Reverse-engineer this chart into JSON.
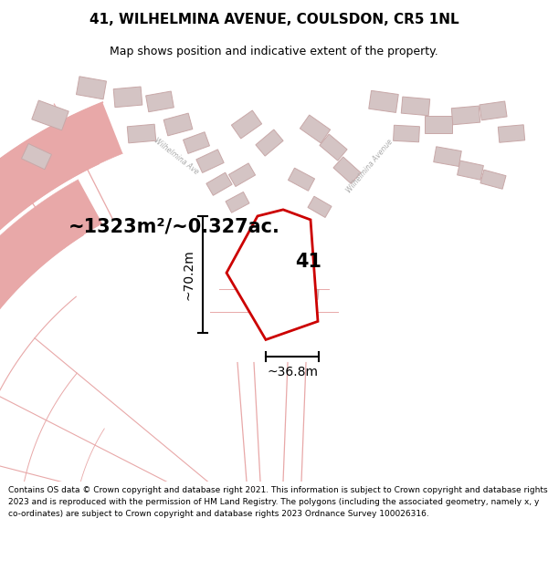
{
  "title": "41, WILHELMINA AVENUE, COULSDON, CR5 1NL",
  "subtitle": "Map shows position and indicative extent of the property.",
  "footer": "Contains OS data © Crown copyright and database right 2021. This information is subject to Crown copyright and database rights 2023 and is reproduced with the permission of HM Land Registry. The polygons (including the associated geometry, namely x, y co-ordinates) are subject to Crown copyright and database rights 2023 Ordnance Survey 100026316.",
  "area_label": "~1323m²/~0.327ac.",
  "number_label": "41",
  "dim_height": "~70.2m",
  "dim_width": "~36.8m",
  "map_bg": "#ffffff",
  "road_color": "#e8a8a8",
  "parcel_color": "#e8a8a8",
  "building_color": "#d0c0c0",
  "highlight_color": "#cc0000",
  "title_fontsize": 11,
  "subtitle_fontsize": 9,
  "footer_fontsize": 6.5
}
